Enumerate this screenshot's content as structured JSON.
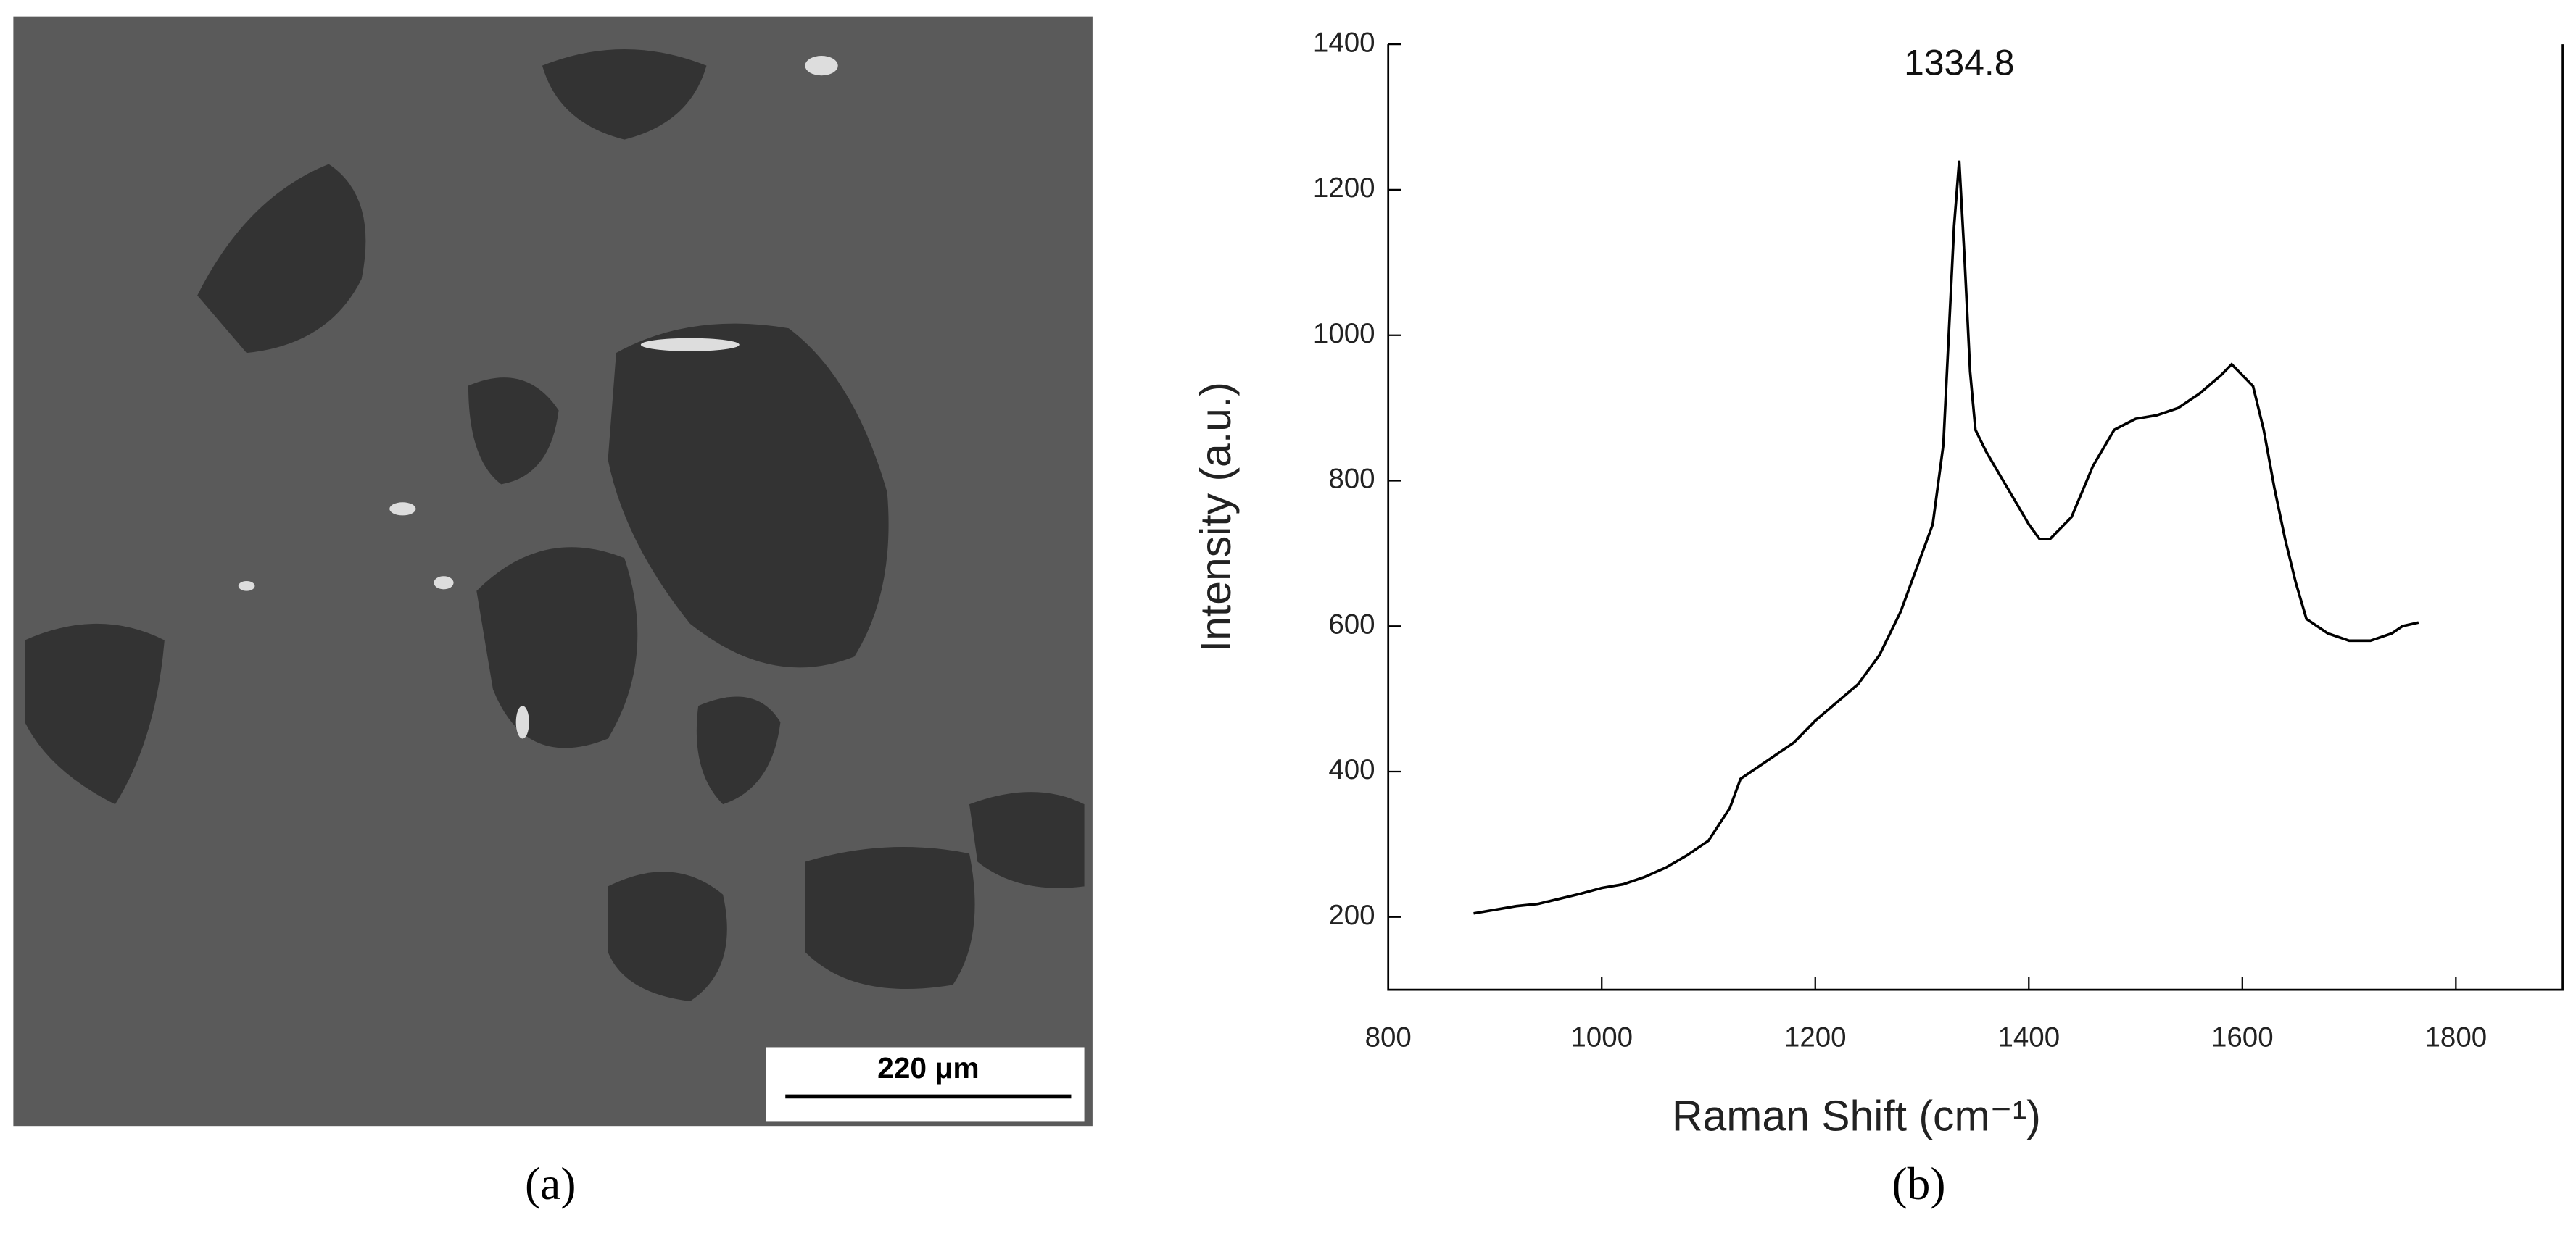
{
  "panel_a": {
    "scale_bar": "220 μm",
    "label": "(a)"
  },
  "chart_data": {
    "type": "line",
    "label": "(b)",
    "x_label": "Raman Shift (cm⁻¹)",
    "y_label": "Intensity (a.u.)",
    "annotations": [
      {
        "text": "1334.8",
        "x": 1334.8,
        "y": 1240
      }
    ],
    "color": "#000000",
    "xlim": [
      800,
      1900
    ],
    "xticks": [
      800,
      1000,
      1200,
      1400,
      1600,
      1800
    ],
    "ylim": [
      100,
      1400
    ],
    "yticks": [
      200,
      400,
      600,
      800,
      1000,
      1200,
      1400
    ],
    "x": [
      880,
      900,
      920,
      940,
      960,
      980,
      1000,
      1020,
      1040,
      1060,
      1080,
      1100,
      1120,
      1130,
      1140,
      1160,
      1180,
      1200,
      1220,
      1240,
      1260,
      1280,
      1300,
      1310,
      1320,
      1325,
      1330,
      1334.8,
      1340,
      1345,
      1350,
      1360,
      1380,
      1400,
      1410,
      1420,
      1440,
      1460,
      1480,
      1500,
      1520,
      1540,
      1560,
      1580,
      1590,
      1600,
      1610,
      1620,
      1630,
      1640,
      1650,
      1660,
      1680,
      1700,
      1720,
      1740,
      1750,
      1765
    ],
    "values": [
      205,
      210,
      215,
      218,
      225,
      232,
      240,
      245,
      255,
      268,
      285,
      305,
      350,
      390,
      400,
      420,
      440,
      470,
      495,
      520,
      560,
      620,
      700,
      740,
      850,
      1000,
      1150,
      1240,
      1100,
      950,
      870,
      840,
      790,
      740,
      720,
      720,
      750,
      820,
      870,
      885,
      890,
      900,
      920,
      945,
      960,
      945,
      930,
      870,
      790,
      720,
      660,
      610,
      590,
      580,
      580,
      590,
      600,
      605
    ]
  }
}
